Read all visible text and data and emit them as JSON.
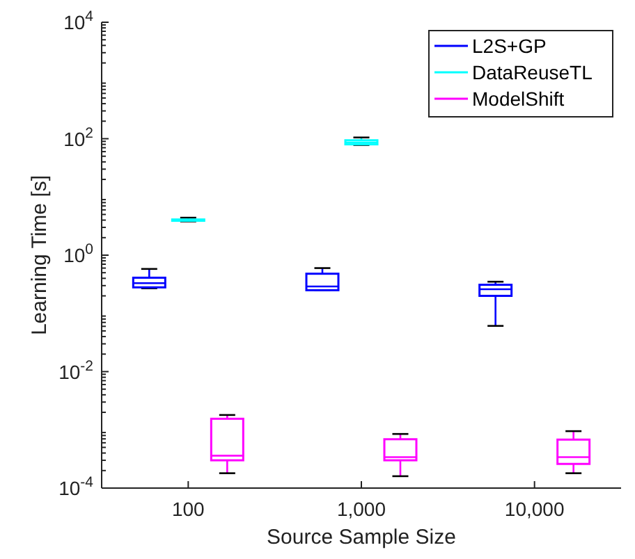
{
  "chart_data": {
    "type": "box",
    "xlabel": "Source Sample Size",
    "ylabel": "Learning Time [s]",
    "categories": [
      "100",
      "1,000",
      "10,000"
    ],
    "log": true,
    "ylim": [
      0.0001,
      10000
    ],
    "yticks": [
      {
        "value": 0.0001,
        "label": "10$^{-4}$"
      },
      {
        "value": 0.01,
        "label": "10$^{-2}$"
      },
      {
        "value": 1,
        "label": "10$^{0}$"
      },
      {
        "value": 100,
        "label": "10$^{2}$"
      },
      {
        "value": 10000,
        "label": "10$^{4}$"
      }
    ],
    "legend": "top right",
    "grid": false,
    "series": [
      {
        "name": "L2S+GP",
        "color": "#0000ff",
        "boxes": [
          {
            "low": 0.27,
            "q1": 0.28,
            "median": 0.33,
            "q3": 0.41,
            "high": 0.58
          },
          {
            "low": 0.25,
            "q1": 0.25,
            "median": 0.29,
            "q3": 0.48,
            "high": 0.6
          },
          {
            "low": 0.061,
            "q1": 0.2,
            "median": 0.26,
            "q3": 0.31,
            "high": 0.35
          }
        ]
      },
      {
        "name": "DataReuseTL",
        "color": "#00ffff",
        "boxes": [
          {
            "low": 3.8,
            "q1": 3.9,
            "median": 4.0,
            "q3": 4.1,
            "high": 4.4
          },
          {
            "low": 78,
            "q1": 80,
            "median": 86,
            "q3": 94,
            "high": 105
          },
          null
        ]
      },
      {
        "name": "ModelShift",
        "color": "#ff00ff",
        "boxes": [
          {
            "low": 0.00018,
            "q1": 0.0003,
            "median": 0.00036,
            "q3": 0.00155,
            "high": 0.0018
          },
          {
            "low": 0.00016,
            "q1": 0.0003,
            "median": 0.00034,
            "q3": 0.00069,
            "high": 0.00085
          },
          {
            "low": 0.00018,
            "q1": 0.00026,
            "median": 0.00034,
            "q3": 0.00068,
            "high": 0.00095
          }
        ]
      }
    ]
  }
}
